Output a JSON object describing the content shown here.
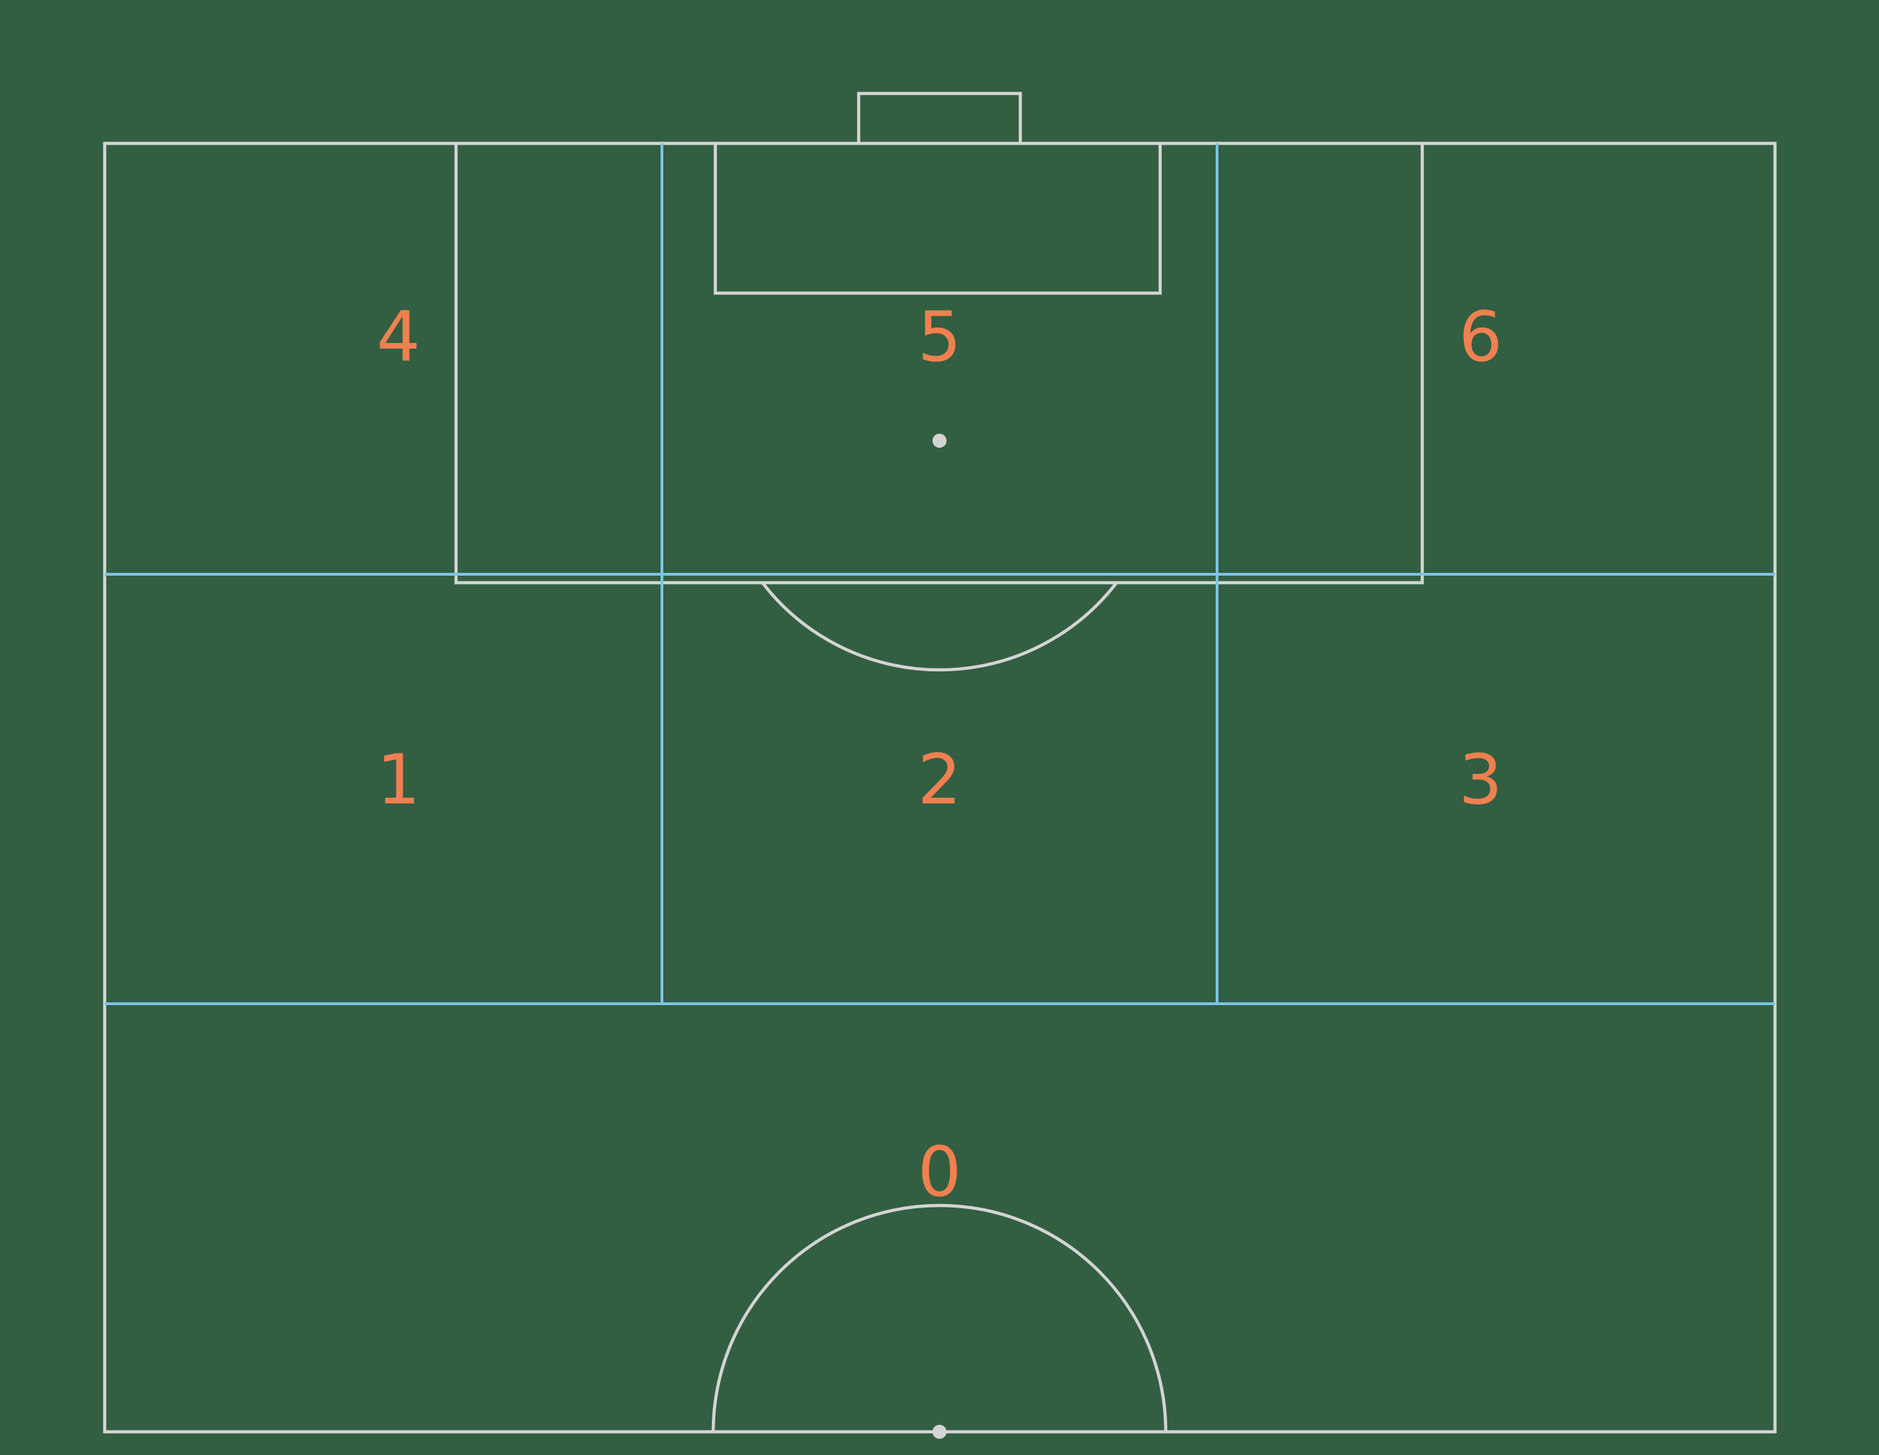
{
  "diagram": {
    "colors": {
      "background": "#325e42",
      "pitch_lines": "#d4d4d4",
      "zone_lines": "#7cc4e6",
      "zone_labels": "#f08050"
    },
    "zones": [
      {
        "id": "zone-4",
        "label": "4"
      },
      {
        "id": "zone-5",
        "label": "5"
      },
      {
        "id": "zone-6",
        "label": "6"
      },
      {
        "id": "zone-1",
        "label": "1"
      },
      {
        "id": "zone-2",
        "label": "2"
      },
      {
        "id": "zone-3",
        "label": "3"
      },
      {
        "id": "zone-0",
        "label": "0"
      }
    ]
  }
}
